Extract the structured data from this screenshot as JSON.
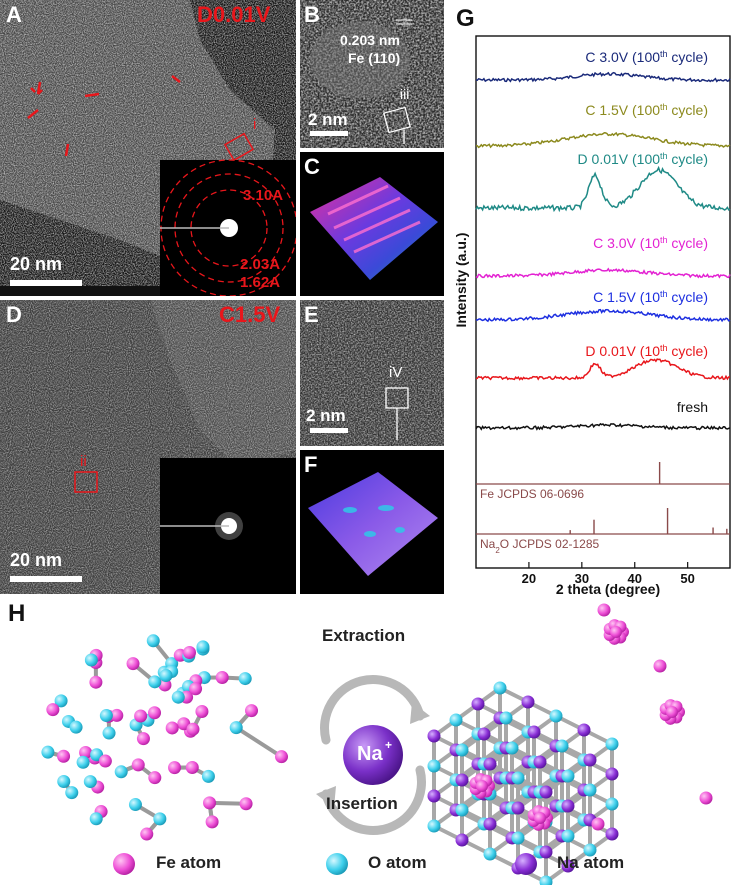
{
  "panels": {
    "A": {
      "letter": "A",
      "condition": "D0.01V",
      "roi": "i",
      "scale": "20 nm",
      "rings": [
        "3.10A",
        "2.03A",
        "1.62A"
      ]
    },
    "B": {
      "letter": "B",
      "spacing": "0.203 nm",
      "plane": "Fe (110)",
      "roi": "iii",
      "scale": "2 nm"
    },
    "C": {
      "letter": "C"
    },
    "D": {
      "letter": "D",
      "condition": "C1.5V",
      "roi": "ii",
      "scale": "20 nm"
    },
    "E": {
      "letter": "E",
      "roi": "iV",
      "scale": "2 nm"
    },
    "F": {
      "letter": "F"
    },
    "G": {
      "letter": "G"
    },
    "H": {
      "letter": "H",
      "top_label": "Extraction",
      "bottom_label": "Insertion",
      "ion": "Na",
      "ion_charge": "+"
    }
  },
  "legend": [
    {
      "label": "Fe atom",
      "color": "#ee4fd6"
    },
    {
      "label": "O atom",
      "color": "#3ed0ec"
    },
    {
      "label": "Na atom",
      "color": "#8a2fd6"
    }
  ],
  "chart_data": {
    "type": "line",
    "xlabel": "2 theta (degree)",
    "ylabel": "Intensity (a.u.)",
    "xlim": [
      10,
      58
    ],
    "xticks": [
      20,
      30,
      40,
      50
    ],
    "series": [
      {
        "name": "C 3.0V (100th cycle)",
        "label_main": "C 3.0V (100",
        "label_sup": "th",
        "label_end": " cycle)",
        "color": "#1a2a7a",
        "peaks": [
          {
            "x": 35,
            "h": 6,
            "w": 6
          }
        ]
      },
      {
        "name": "C 1.5V (100th cycle)",
        "label_main": "C 1.5V (100",
        "label_sup": "th",
        "label_end": " cycle)",
        "color": "#8c8a1e",
        "peaks": [
          {
            "x": 35,
            "h": 12,
            "w": 8
          }
        ]
      },
      {
        "name": "D 0.01V (100th cycle)",
        "label_main": "D 0.01V (100",
        "label_sup": "th",
        "label_end": " cycle)",
        "color": "#1f8a86",
        "peaks": [
          {
            "x": 32.5,
            "h": 32,
            "w": 1.2
          },
          {
            "x": 44.5,
            "h": 38,
            "w": 3.5
          }
        ]
      },
      {
        "name": "C 3.0V (10th cycle)",
        "label_main": "C 3.0V (10",
        "label_sup": "th",
        "label_end": " cycle)",
        "color": "#e322d2",
        "peaks": [
          {
            "x": 35,
            "h": 6,
            "w": 7
          }
        ]
      },
      {
        "name": "C 1.5V (10th cycle)",
        "label_main": "C 1.5V (10",
        "label_sup": "th",
        "label_end": " cycle)",
        "color": "#1d2fe0",
        "peaks": [
          {
            "x": 35,
            "h": 9,
            "w": 8
          }
        ]
      },
      {
        "name": "D 0.01V (10th cycle)",
        "label_main": "D 0.01V (10",
        "label_sup": "th",
        "label_end": " cycle)",
        "color": "#e8161b",
        "peaks": [
          {
            "x": 32.5,
            "h": 14,
            "w": 1.0
          },
          {
            "x": 44,
            "h": 18,
            "w": 4
          }
        ]
      },
      {
        "name": "fresh",
        "label_main": "fresh",
        "label_sup": "",
        "label_end": "",
        "color": "#111111",
        "peaks": [
          {
            "x": 35,
            "h": 3,
            "w": 6
          }
        ]
      }
    ],
    "references": [
      {
        "name": "Fe JCPDS 06-0696",
        "label_main": "Fe JCPDS 06-0696",
        "label_sub": "",
        "label_end": "",
        "lines": [
          {
            "x": 44.7,
            "h": 1.0
          }
        ]
      },
      {
        "name": "Na2O JCPDS 02-1285",
        "label_main": "Na",
        "label_sub": "2",
        "label_end": "O JCPDS 02-1285",
        "lines": [
          {
            "x": 27.8,
            "h": 0.15
          },
          {
            "x": 32.3,
            "h": 0.55
          },
          {
            "x": 46.2,
            "h": 1.0
          },
          {
            "x": 54.8,
            "h": 0.25
          },
          {
            "x": 57.4,
            "h": 0.2
          }
        ]
      }
    ]
  }
}
